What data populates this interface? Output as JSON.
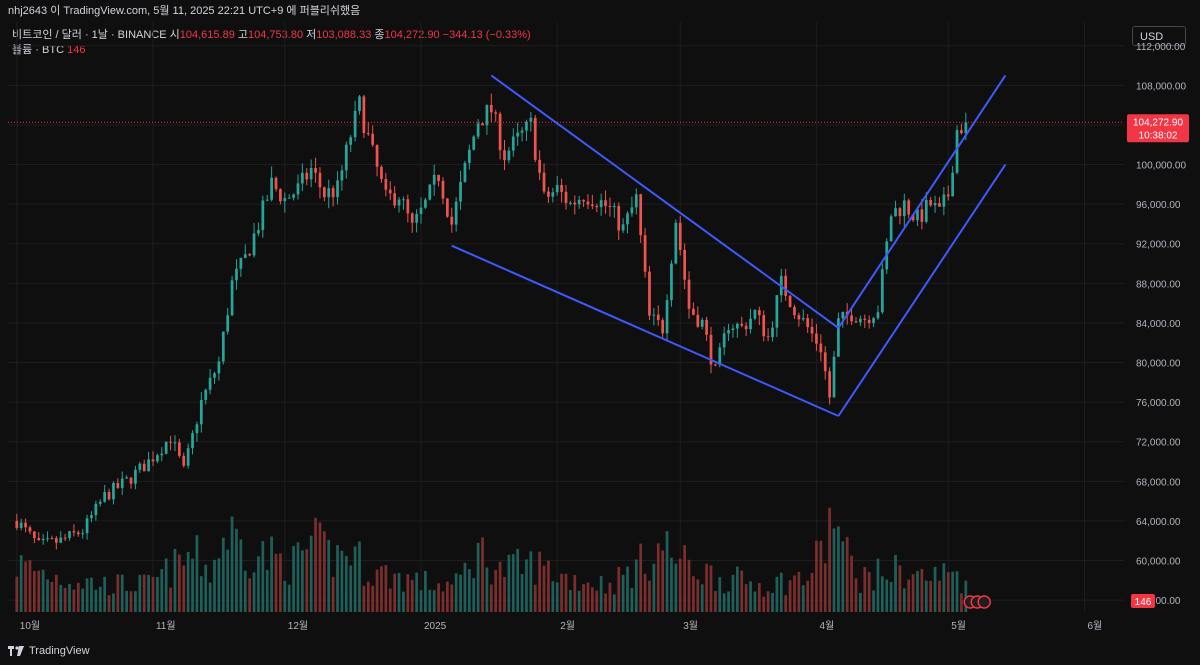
{
  "header": {
    "caption": "nhj2643 이 TradingView.com, 5월 11, 2025 22:21 UTC+9 에 퍼블리쉬했음"
  },
  "legend": {
    "symbol": "비트코인 / 달러 · 1날 · BINANCE",
    "open_label": "시",
    "open": "104,615.89",
    "high_label": "고",
    "high": "104,753.80",
    "low_label": "저",
    "low": "103,088.33",
    "close_label": "종",
    "close": "104,272.90",
    "change": "−344.13 (−0.33%)",
    "volume_label": "볼륨 · BTC",
    "volume": "146"
  },
  "currency_button": "USD",
  "branding": "TradingView",
  "colors": {
    "background": "#0f0f0f",
    "grid": "#1e1e1e",
    "up": "#26a69a",
    "down": "#ef5350",
    "volume_up": "#1f5f5a",
    "volume_down": "#7a2e2e",
    "trendline": "#3d5afe",
    "price_line": "#f23645"
  },
  "chart_data": {
    "type": "candlestick",
    "y_ticks": [
      "112,000.00",
      "108,000.00",
      "104,000.00",
      "100,000.00",
      "96,000.00",
      "92,000.00",
      "88,000.00",
      "84,000.00",
      "80,000.00",
      "76,000.00",
      "72,000.00",
      "68,000.00",
      "64,000.00",
      "60,000.00",
      "56,000.00"
    ],
    "y_tick_values": [
      112000,
      108000,
      104000,
      100000,
      96000,
      92000,
      88000,
      84000,
      80000,
      76000,
      72000,
      68000,
      64000,
      60000,
      56000
    ],
    "ylim": [
      54800,
      114400
    ],
    "x_ticks": [
      {
        "label": "10월",
        "day": 0
      },
      {
        "label": "11월",
        "day": 31
      },
      {
        "label": "12월",
        "day": 61
      },
      {
        "label": "2025",
        "day": 92
      },
      {
        "label": "2월",
        "day": 123
      },
      {
        "label": "3월",
        "day": 151
      },
      {
        "label": "4월",
        "day": 182
      },
      {
        "label": "5월",
        "day": 212
      },
      {
        "label": "6월",
        "day": 243
      }
    ],
    "xlim_days": [
      -2,
      252
    ],
    "last_price": 104272.9,
    "last_price_label": "104,272.90",
    "countdown_label": "10:38:02",
    "volume_label": "146",
    "price_anchors": [
      [
        0,
        64000
      ],
      [
        5,
        61500
      ],
      [
        10,
        62000
      ],
      [
        15,
        63000
      ],
      [
        20,
        66500
      ],
      [
        25,
        68000
      ],
      [
        30,
        70000
      ],
      [
        35,
        72500
      ],
      [
        38,
        69000
      ],
      [
        42,
        76000
      ],
      [
        46,
        80000
      ],
      [
        49,
        88000
      ],
      [
        52,
        90500
      ],
      [
        55,
        94000
      ],
      [
        58,
        98000
      ],
      [
        61,
        96500
      ],
      [
        64,
        97500
      ],
      [
        67,
        99500
      ],
      [
        70,
        97000
      ],
      [
        73,
        97500
      ],
      [
        76,
        103000
      ],
      [
        78,
        106000
      ],
      [
        81,
        101000
      ],
      [
        84,
        96500
      ],
      [
        87,
        97000
      ],
      [
        90,
        93500
      ],
      [
        93,
        96000
      ],
      [
        96,
        99000
      ],
      [
        99,
        94000
      ],
      [
        102,
        99500
      ],
      [
        105,
        104500
      ],
      [
        108,
        105500
      ],
      [
        111,
        101000
      ],
      [
        114,
        102500
      ],
      [
        117,
        104000
      ],
      [
        120,
        96500
      ],
      [
        123,
        97500
      ],
      [
        126,
        96000
      ],
      [
        129,
        97000
      ],
      [
        132,
        96500
      ],
      [
        135,
        95500
      ],
      [
        138,
        93500
      ],
      [
        141,
        96500
      ],
      [
        144,
        84500
      ],
      [
        147,
        83500
      ],
      [
        150,
        94500
      ],
      [
        153,
        85500
      ],
      [
        156,
        84000
      ],
      [
        159,
        79000
      ],
      [
        162,
        84000
      ],
      [
        165,
        83500
      ],
      [
        168,
        85000
      ],
      [
        171,
        82500
      ],
      [
        174,
        88000
      ],
      [
        177,
        85500
      ],
      [
        180,
        83500
      ],
      [
        183,
        81500
      ],
      [
        185,
        76500
      ],
      [
        187,
        84000
      ],
      [
        190,
        85000
      ],
      [
        193,
        84500
      ],
      [
        196,
        85500
      ],
      [
        199,
        95000
      ],
      [
        202,
        96000
      ],
      [
        205,
        94500
      ],
      [
        208,
        96000
      ],
      [
        210,
        95000
      ],
      [
        212,
        97000
      ],
      [
        214,
        103500
      ],
      [
        216,
        104273
      ]
    ],
    "volume_anchors": [
      [
        0,
        3.5
      ],
      [
        10,
        2.5
      ],
      [
        20,
        2.0
      ],
      [
        30,
        2.0
      ],
      [
        37,
        3.5
      ],
      [
        40,
        4.2
      ],
      [
        44,
        3.0
      ],
      [
        48,
        6.0
      ],
      [
        52,
        4.5
      ],
      [
        58,
        4.0
      ],
      [
        63,
        3.5
      ],
      [
        67,
        5.0
      ],
      [
        72,
        4.0
      ],
      [
        76,
        4.5
      ],
      [
        80,
        3.0
      ],
      [
        88,
        2.5
      ],
      [
        95,
        2.0
      ],
      [
        100,
        2.0
      ],
      [
        105,
        4.5
      ],
      [
        110,
        3.0
      ],
      [
        118,
        3.5
      ],
      [
        125,
        2.5
      ],
      [
        135,
        2.0
      ],
      [
        142,
        3.5
      ],
      [
        147,
        4.8
      ],
      [
        152,
        3.5
      ],
      [
        160,
        2.5
      ],
      [
        170,
        2.0
      ],
      [
        180,
        2.5
      ],
      [
        184,
        5.0
      ],
      [
        186,
        7.5
      ],
      [
        188,
        4.5
      ],
      [
        192,
        2.5
      ],
      [
        200,
        3.0
      ],
      [
        208,
        2.5
      ],
      [
        214,
        3.0
      ],
      [
        216,
        1.8
      ]
    ],
    "volume_max": 11.0,
    "trendlines": [
      {
        "from": [
          108,
          109000
        ],
        "to": [
          187,
          83500
        ]
      },
      {
        "from": [
          99,
          91800
        ],
        "to": [
          187,
          74600
        ]
      },
      {
        "from": [
          187,
          83500
        ],
        "to": [
          225,
          109000
        ]
      },
      {
        "from": [
          187,
          74600
        ],
        "to": [
          225,
          100000
        ]
      }
    ],
    "event_markers": 3
  }
}
